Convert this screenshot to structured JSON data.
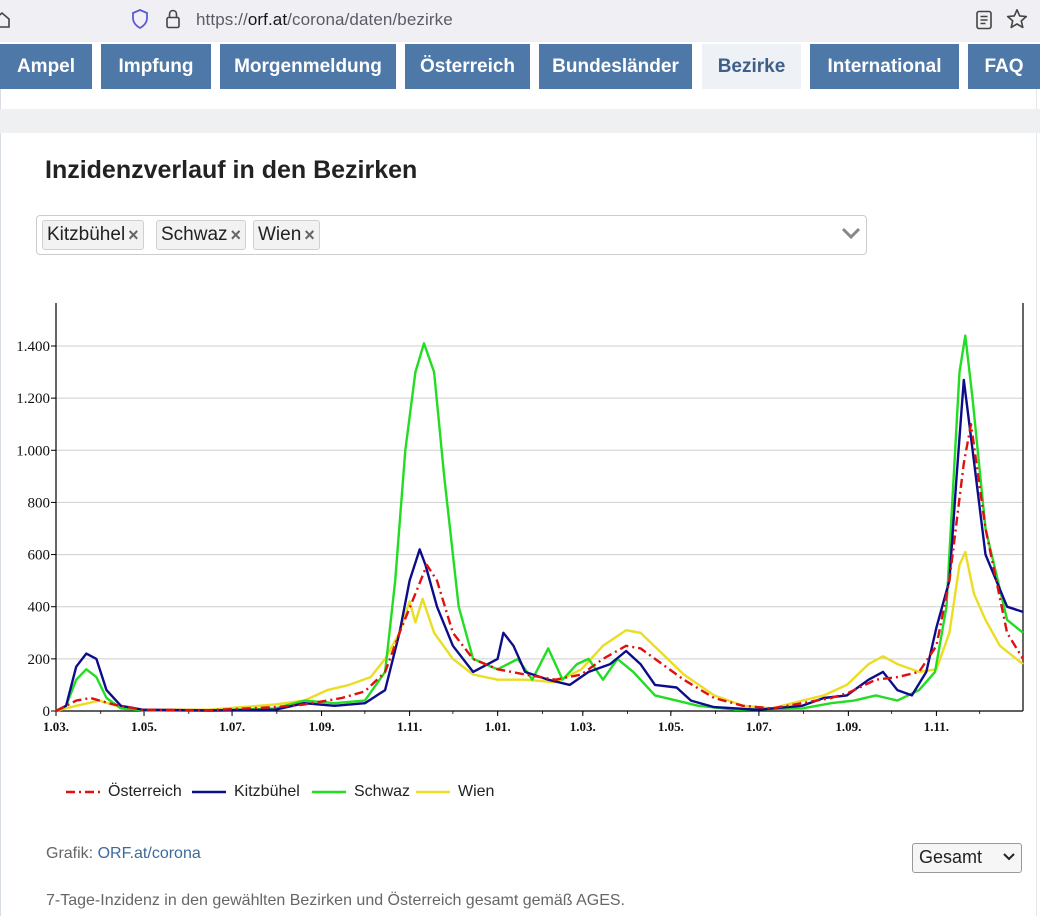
{
  "browser": {
    "url_prefix": "https://",
    "url_host": "orf.at",
    "url_path": "/corona/daten/bezirke"
  },
  "nav": {
    "tabs": [
      {
        "label": "Ampel",
        "active": false
      },
      {
        "label": "Impfung",
        "active": false
      },
      {
        "label": "Morgenmeldung",
        "active": false
      },
      {
        "label": "Österreich",
        "active": false
      },
      {
        "label": "Bundesländer",
        "active": false
      },
      {
        "label": "Bezirke",
        "active": true
      },
      {
        "label": "International",
        "active": false
      },
      {
        "label": "FAQ",
        "active": false
      }
    ]
  },
  "page": {
    "title": "Inzidenzverlauf in den Bezirken",
    "selected_districts": [
      "Kitzbühel",
      "Schwaz",
      "Wien"
    ],
    "chip_remove": "×",
    "credit_label": "Grafik:",
    "credit_link": "ORF.at/corona",
    "period_value": "Gesamt",
    "note": "7-Tage-Inzidenz in den gewählten Bezirken und Österreich gesamt gemäß AGES."
  },
  "colors": {
    "accent": "#4e78a8",
    "Österreich": "#e01010",
    "Kitzbühel": "#0d0d8c",
    "Schwaz": "#22dd22",
    "Wien": "#eadd22"
  },
  "chart_data": {
    "type": "line",
    "x_unit": "date",
    "xlim": [
      "2020-03-01",
      "2021-12-31"
    ],
    "ylim": [
      0,
      1500
    ],
    "yticks": [
      0,
      200,
      400,
      600,
      800,
      1000,
      1200,
      1400
    ],
    "ytick_labels": [
      "0",
      "200",
      "400",
      "600",
      "800",
      "1.000",
      "1.200",
      "1.400"
    ],
    "xticks": [
      "2020-03-01",
      "2020-05-01",
      "2020-07-01",
      "2020-09-01",
      "2020-11-01",
      "2021-01-01",
      "2021-03-01",
      "2021-05-01",
      "2021-07-01",
      "2021-09-01",
      "2021-11-01"
    ],
    "xtick_labels": [
      "1.03.",
      "1.05.",
      "1.07.",
      "1.09.",
      "1.11.",
      "1.01.",
      "1.03.",
      "1.05.",
      "1.07.",
      "1.09.",
      "1.11."
    ],
    "grid": true,
    "legend": "bottom-left",
    "series": [
      {
        "name": "Österreich",
        "style": "dashdot",
        "points": [
          [
            "2020-03-01",
            0
          ],
          [
            "2020-03-15",
            40
          ],
          [
            "2020-03-25",
            50
          ],
          [
            "2020-04-10",
            25
          ],
          [
            "2020-04-30",
            5
          ],
          [
            "2020-06-15",
            3
          ],
          [
            "2020-07-31",
            15
          ],
          [
            "2020-08-20",
            25
          ],
          [
            "2020-09-15",
            50
          ],
          [
            "2020-10-01",
            75
          ],
          [
            "2020-10-15",
            150
          ],
          [
            "2020-10-25",
            300
          ],
          [
            "2020-11-05",
            450
          ],
          [
            "2020-11-13",
            560
          ],
          [
            "2020-11-20",
            500
          ],
          [
            "2020-12-01",
            300
          ],
          [
            "2020-12-15",
            200
          ],
          [
            "2021-01-01",
            160
          ],
          [
            "2021-01-20",
            140
          ],
          [
            "2021-02-10",
            120
          ],
          [
            "2021-02-28",
            140
          ],
          [
            "2021-03-15",
            200
          ],
          [
            "2021-03-31",
            250
          ],
          [
            "2021-04-10",
            240
          ],
          [
            "2021-04-25",
            180
          ],
          [
            "2021-05-10",
            120
          ],
          [
            "2021-05-31",
            50
          ],
          [
            "2021-06-20",
            20
          ],
          [
            "2021-07-10",
            10
          ],
          [
            "2021-07-31",
            30
          ],
          [
            "2021-08-20",
            50
          ],
          [
            "2021-09-01",
            70
          ],
          [
            "2021-09-20",
            120
          ],
          [
            "2021-10-05",
            130
          ],
          [
            "2021-10-20",
            150
          ],
          [
            "2021-11-01",
            250
          ],
          [
            "2021-11-10",
            500
          ],
          [
            "2021-11-20",
            950
          ],
          [
            "2021-11-25",
            1100
          ],
          [
            "2021-12-05",
            700
          ],
          [
            "2021-12-20",
            300
          ],
          [
            "2021-12-31",
            200
          ]
        ]
      },
      {
        "name": "Kitzbühel",
        "style": "solid",
        "points": [
          [
            "2020-03-01",
            0
          ],
          [
            "2020-03-08",
            20
          ],
          [
            "2020-03-15",
            170
          ],
          [
            "2020-03-22",
            220
          ],
          [
            "2020-03-29",
            200
          ],
          [
            "2020-04-05",
            80
          ],
          [
            "2020-04-15",
            20
          ],
          [
            "2020-04-30",
            5
          ],
          [
            "2020-06-15",
            2
          ],
          [
            "2020-07-31",
            5
          ],
          [
            "2020-08-20",
            30
          ],
          [
            "2020-09-10",
            20
          ],
          [
            "2020-10-01",
            30
          ],
          [
            "2020-10-15",
            80
          ],
          [
            "2020-10-25",
            300
          ],
          [
            "2020-11-01",
            500
          ],
          [
            "2020-11-08",
            620
          ],
          [
            "2020-11-12",
            560
          ],
          [
            "2020-11-20",
            400
          ],
          [
            "2020-12-01",
            250
          ],
          [
            "2020-12-15",
            150
          ],
          [
            "2021-01-01",
            200
          ],
          [
            "2021-01-05",
            300
          ],
          [
            "2021-01-12",
            250
          ],
          [
            "2021-01-20",
            150
          ],
          [
            "2021-02-05",
            120
          ],
          [
            "2021-02-20",
            100
          ],
          [
            "2021-03-05",
            150
          ],
          [
            "2021-03-20",
            180
          ],
          [
            "2021-03-31",
            230
          ],
          [
            "2021-04-10",
            180
          ],
          [
            "2021-04-20",
            100
          ],
          [
            "2021-05-05",
            90
          ],
          [
            "2021-05-15",
            40
          ],
          [
            "2021-05-31",
            15
          ],
          [
            "2021-06-30",
            5
          ],
          [
            "2021-07-31",
            20
          ],
          [
            "2021-08-15",
            50
          ],
          [
            "2021-08-31",
            60
          ],
          [
            "2021-09-15",
            120
          ],
          [
            "2021-09-25",
            150
          ],
          [
            "2021-10-05",
            80
          ],
          [
            "2021-10-15",
            60
          ],
          [
            "2021-10-25",
            150
          ],
          [
            "2021-11-01",
            320
          ],
          [
            "2021-11-10",
            500
          ],
          [
            "2021-11-15",
            900
          ],
          [
            "2021-11-20",
            1270
          ],
          [
            "2021-11-25",
            1050
          ],
          [
            "2021-12-05",
            600
          ],
          [
            "2021-12-20",
            400
          ],
          [
            "2021-12-31",
            380
          ]
        ]
      },
      {
        "name": "Schwaz",
        "style": "solid",
        "points": [
          [
            "2020-03-01",
            0
          ],
          [
            "2020-03-08",
            20
          ],
          [
            "2020-03-15",
            120
          ],
          [
            "2020-03-22",
            160
          ],
          [
            "2020-03-29",
            130
          ],
          [
            "2020-04-05",
            50
          ],
          [
            "2020-04-15",
            10
          ],
          [
            "2020-04-30",
            3
          ],
          [
            "2020-06-15",
            2
          ],
          [
            "2020-07-31",
            10
          ],
          [
            "2020-08-20",
            40
          ],
          [
            "2020-09-10",
            30
          ],
          [
            "2020-10-01",
            40
          ],
          [
            "2020-10-15",
            150
          ],
          [
            "2020-10-22",
            500
          ],
          [
            "2020-10-29",
            1000
          ],
          [
            "2020-11-05",
            1300
          ],
          [
            "2020-11-11",
            1410
          ],
          [
            "2020-11-18",
            1300
          ],
          [
            "2020-11-25",
            900
          ],
          [
            "2020-12-05",
            400
          ],
          [
            "2020-12-15",
            200
          ],
          [
            "2021-01-01",
            160
          ],
          [
            "2021-01-15",
            200
          ],
          [
            "2021-01-25",
            120
          ],
          [
            "2021-02-05",
            240
          ],
          [
            "2021-02-15",
            120
          ],
          [
            "2021-02-25",
            180
          ],
          [
            "2021-03-05",
            200
          ],
          [
            "2021-03-15",
            120
          ],
          [
            "2021-03-25",
            200
          ],
          [
            "2021-04-05",
            150
          ],
          [
            "2021-04-20",
            60
          ],
          [
            "2021-05-05",
            40
          ],
          [
            "2021-05-20",
            20
          ],
          [
            "2021-06-15",
            5
          ],
          [
            "2021-07-31",
            10
          ],
          [
            "2021-08-20",
            30
          ],
          [
            "2021-09-05",
            40
          ],
          [
            "2021-09-20",
            60
          ],
          [
            "2021-10-05",
            40
          ],
          [
            "2021-10-20",
            80
          ],
          [
            "2021-10-31",
            150
          ],
          [
            "2021-11-08",
            400
          ],
          [
            "2021-11-13",
            900
          ],
          [
            "2021-11-17",
            1300
          ],
          [
            "2021-11-21",
            1440
          ],
          [
            "2021-11-26",
            1200
          ],
          [
            "2021-12-05",
            700
          ],
          [
            "2021-12-20",
            350
          ],
          [
            "2021-12-31",
            300
          ]
        ]
      },
      {
        "name": "Wien",
        "style": "solid",
        "points": [
          [
            "2020-03-01",
            0
          ],
          [
            "2020-03-15",
            20
          ],
          [
            "2020-03-31",
            40
          ],
          [
            "2020-04-15",
            15
          ],
          [
            "2020-04-30",
            5
          ],
          [
            "2020-06-15",
            5
          ],
          [
            "2020-07-31",
            25
          ],
          [
            "2020-08-20",
            40
          ],
          [
            "2020-09-05",
            80
          ],
          [
            "2020-09-20",
            100
          ],
          [
            "2020-10-05",
            130
          ],
          [
            "2020-10-15",
            200
          ],
          [
            "2020-10-25",
            300
          ],
          [
            "2020-11-01",
            420
          ],
          [
            "2020-11-05",
            340
          ],
          [
            "2020-11-10",
            430
          ],
          [
            "2020-11-18",
            300
          ],
          [
            "2020-12-01",
            200
          ],
          [
            "2020-12-15",
            140
          ],
          [
            "2021-01-01",
            120
          ],
          [
            "2021-01-20",
            120
          ],
          [
            "2021-02-10",
            110
          ],
          [
            "2021-02-28",
            160
          ],
          [
            "2021-03-15",
            250
          ],
          [
            "2021-03-31",
            310
          ],
          [
            "2021-04-10",
            300
          ],
          [
            "2021-04-25",
            220
          ],
          [
            "2021-05-10",
            140
          ],
          [
            "2021-05-31",
            60
          ],
          [
            "2021-06-20",
            20
          ],
          [
            "2021-07-10",
            10
          ],
          [
            "2021-07-31",
            40
          ],
          [
            "2021-08-15",
            60
          ],
          [
            "2021-08-31",
            100
          ],
          [
            "2021-09-15",
            180
          ],
          [
            "2021-09-25",
            210
          ],
          [
            "2021-10-05",
            180
          ],
          [
            "2021-10-20",
            150
          ],
          [
            "2021-11-01",
            160
          ],
          [
            "2021-11-10",
            300
          ],
          [
            "2021-11-17",
            560
          ],
          [
            "2021-11-21",
            610
          ],
          [
            "2021-11-27",
            450
          ],
          [
            "2021-12-05",
            350
          ],
          [
            "2021-12-15",
            250
          ],
          [
            "2021-12-31",
            180
          ]
        ]
      }
    ]
  }
}
